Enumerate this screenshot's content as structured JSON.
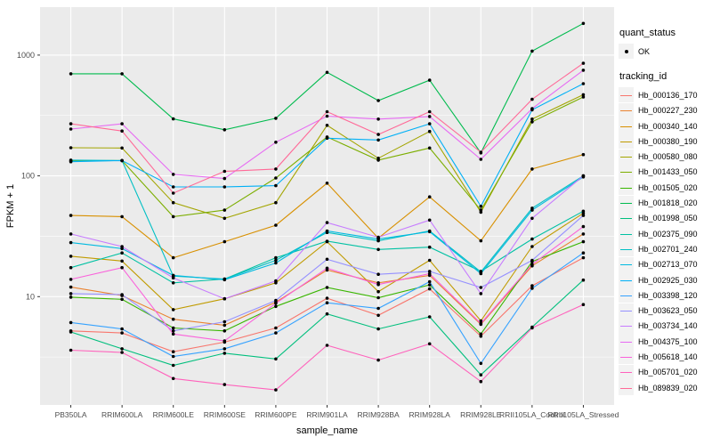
{
  "chart_data": {
    "type": "line",
    "title": "",
    "xlabel": "sample_name",
    "ylabel": "FPKM + 1",
    "y_scale": "log10",
    "y_ticks": [
      10,
      100,
      1000
    ],
    "y_minor_ticks": [
      3.162,
      31.62,
      316.2
    ],
    "ylim": [
      1.25,
      2500
    ],
    "grid": true,
    "legend_position": "right",
    "panel_bg": "#EBEBEB",
    "grid_color": "#FFFFFF",
    "point_color": "#000000",
    "categories": [
      "PB350LA",
      "RRIM600LA",
      "RRIM600LE",
      "RRIM600SE",
      "RRIM600PE",
      "RRIM901LA",
      "RRIM928BA",
      "RRIM928LA",
      "RRIM928LE",
      "RRII105LA_Control",
      "RRII105LA_Stressed"
    ],
    "legend": {
      "quant_status": {
        "title": "quant_status",
        "items": [
          {
            "label": "OK",
            "symbol": "point"
          }
        ]
      },
      "tracking_id": {
        "title": "tracking_id"
      }
    },
    "series": [
      {
        "name": "Hb_000136_170",
        "color": "#F8766D",
        "values": [
          5.2,
          5.0,
          3.5,
          4.2,
          5.5,
          9.7,
          7.0,
          11.6,
          4.7,
          12.3,
          21
        ]
      },
      {
        "name": "Hb_000227_230",
        "color": "#EA8331",
        "values": [
          12,
          10.2,
          6.5,
          5.8,
          9.0,
          16.6,
          13.0,
          15.0,
          5.9,
          18,
          33
        ]
      },
      {
        "name": "Hb_000340_140",
        "color": "#D89000",
        "values": [
          47,
          46,
          21,
          28.5,
          39,
          87,
          30.5,
          67,
          29,
          114,
          150
        ]
      },
      {
        "name": "Hb_000380_190",
        "color": "#C09B00",
        "values": [
          21.6,
          19.7,
          7.8,
          9.6,
          13,
          28.5,
          11,
          20,
          6.3,
          26,
          49
        ]
      },
      {
        "name": "Hb_000580_080",
        "color": "#A3A500",
        "values": [
          171,
          170,
          60,
          44.5,
          60,
          262,
          140,
          233,
          50,
          295,
          470
        ]
      },
      {
        "name": "Hb_001433_050",
        "color": "#7CAE00",
        "values": [
          133,
          134,
          46,
          52,
          96,
          210,
          135,
          170,
          52,
          280,
          450
        ]
      },
      {
        "name": "Hb_001505_020",
        "color": "#39B600",
        "values": [
          9.9,
          9.5,
          5.5,
          5.2,
          8.3,
          11.9,
          9.8,
          12.5,
          4.9,
          19.5,
          28.5
        ]
      },
      {
        "name": "Hb_001818_020",
        "color": "#00BB4E",
        "values": [
          700,
          700,
          296,
          241,
          300,
          720,
          420,
          620,
          155,
          1080,
          1830
        ]
      },
      {
        "name": "Hb_001998_050",
        "color": "#00BF7D",
        "values": [
          5.1,
          3.7,
          2.7,
          3.4,
          3.05,
          7.2,
          5.4,
          6.8,
          2.25,
          5.6,
          13.7
        ]
      },
      {
        "name": "Hb_002375_090",
        "color": "#00C1A3",
        "values": [
          17.4,
          23,
          13,
          14,
          21,
          28.8,
          24.6,
          25.7,
          16.2,
          30,
          51
        ]
      },
      {
        "name": "Hb_002701_240",
        "color": "#00BFC4",
        "values": [
          135,
          134,
          14.8,
          14,
          20,
          34,
          29,
          35,
          16.0,
          54,
          100
        ]
      },
      {
        "name": "Hb_002713_070",
        "color": "#00BAE0",
        "values": [
          28,
          25,
          15,
          13.8,
          19,
          35,
          30,
          34.5,
          15.5,
          52,
          98
        ]
      },
      {
        "name": "Hb_002925_030",
        "color": "#00B0F6",
        "values": [
          131,
          134,
          81,
          81,
          83,
          205,
          198,
          270,
          56,
          352,
          580
        ]
      },
      {
        "name": "Hb_003398_120",
        "color": "#35A2FF",
        "values": [
          6.1,
          5.4,
          3.2,
          3.7,
          5.0,
          8.9,
          8.0,
          13.3,
          2.8,
          11.7,
          23
        ]
      },
      {
        "name": "Hb_003623_050",
        "color": "#9590FF",
        "values": [
          10.6,
          10.4,
          5.2,
          6.2,
          9.3,
          20.4,
          15.3,
          16.2,
          11.9,
          20,
          47
        ]
      },
      {
        "name": "Hb_003734_140",
        "color": "#C77CFF",
        "values": [
          33,
          26,
          14.3,
          9.6,
          13.5,
          41,
          31,
          43,
          10.6,
          44.5,
          100
        ]
      },
      {
        "name": "Hb_004375_100",
        "color": "#E76BF3",
        "values": [
          244,
          270,
          103,
          95,
          190,
          312,
          295,
          310,
          137,
          360,
          750
        ]
      },
      {
        "name": "Hb_005618_140",
        "color": "#FA62DB",
        "values": [
          13.9,
          17.4,
          4.9,
          4.3,
          8.8,
          17.2,
          12.6,
          15.5,
          6.0,
          18.5,
          38
        ]
      },
      {
        "name": "Hb_005701_020",
        "color": "#FF62BC",
        "values": [
          3.6,
          3.45,
          2.1,
          1.87,
          1.69,
          3.95,
          2.98,
          4.07,
          1.98,
          5.5,
          8.6
        ]
      },
      {
        "name": "Hb_089839_020",
        "color": "#FF6A98",
        "values": [
          270,
          235,
          72,
          109,
          114,
          340,
          220,
          340,
          157,
          430,
          855
        ]
      }
    ]
  }
}
